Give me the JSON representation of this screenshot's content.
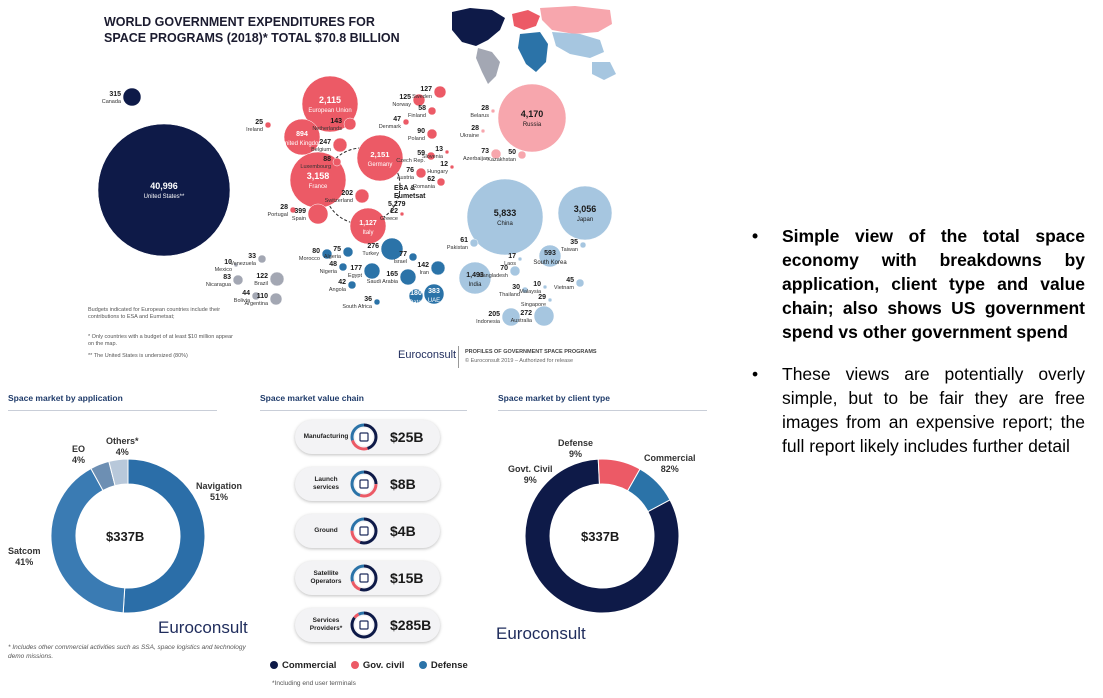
{
  "colors": {
    "us_navy": "#0e1a48",
    "europe_red": "#ec5a66",
    "europe_light": "#f7a6ad",
    "asia_blue": "#a6c6e0",
    "mideast_blue": "#2b73a8",
    "latam_grey": "#a3a7b3",
    "commercial": "#0e1a48",
    "gov_civil": "#ec5a66",
    "defense": "#2b73a8",
    "eo": "#6d8fb3",
    "others": "#b8c8da"
  },
  "bubble_map": {
    "title_line1": "WORLD GOVERNMENT EXPENDITURES FOR",
    "title_line2": "SPACE PROGRAMS (2018)* TOTAL $70.8 BILLION",
    "footnote1": "Budgets indicated for European countries include their contributions to ESA and Eumetsat;",
    "footnote2": "* Only countries with a budget of at least  $10 million appear on the map.",
    "footnote3": "** The United States is undersized (80%)",
    "brand": "Euroconsult",
    "brand_tag1": "PROFILES OF GOVERNMENT SPACE PROGRAMS",
    "brand_tag2": "© Euroconsult 2019 – Authorized for release",
    "esa_label": "ESA &\nEumetsat",
    "esa_value": "5,279"
  },
  "chart_data": [
    {
      "type": "scatter",
      "title": "WORLD GOVERNMENT EXPENDITURES FOR SPACE PROGRAMS (2018)* TOTAL $70.8 BILLION",
      "unit": "$M",
      "points": [
        {
          "name": "United States**",
          "value": "40,996",
          "group": "us"
        },
        {
          "name": "Canada",
          "value": "315",
          "group": "us"
        },
        {
          "name": "European Union",
          "value": "2,115",
          "group": "europe"
        },
        {
          "name": "United Kingdom",
          "value": "894",
          "group": "europe"
        },
        {
          "name": "Ireland",
          "value": "25",
          "group": "europe"
        },
        {
          "name": "Belgium",
          "value": "247",
          "group": "europe"
        },
        {
          "name": "Netherlands",
          "value": "143",
          "group": "europe"
        },
        {
          "name": "Germany",
          "value": "2,151",
          "group": "europe"
        },
        {
          "name": "France",
          "value": "3,158",
          "group": "europe"
        },
        {
          "name": "Luxembourg",
          "value": "88",
          "group": "europe"
        },
        {
          "name": "Switzerland",
          "value": "202",
          "group": "europe"
        },
        {
          "name": "Portugal",
          "value": "28",
          "group": "europe"
        },
        {
          "name": "Spain",
          "value": "399",
          "group": "europe"
        },
        {
          "name": "Italy",
          "value": "1,127",
          "group": "europe"
        },
        {
          "name": "Greece",
          "value": "22",
          "group": "europe"
        },
        {
          "name": "Norway",
          "value": "125",
          "group": "europe"
        },
        {
          "name": "Sweden",
          "value": "127",
          "group": "europe"
        },
        {
          "name": "Finland",
          "value": "58",
          "group": "europe"
        },
        {
          "name": "Denmark",
          "value": "47",
          "group": "europe"
        },
        {
          "name": "Poland",
          "value": "90",
          "group": "europe"
        },
        {
          "name": "Czech Rep.",
          "value": "59",
          "group": "europe"
        },
        {
          "name": "Slovenia",
          "value": "13",
          "group": "europe"
        },
        {
          "name": "Hungary",
          "value": "12",
          "group": "europe"
        },
        {
          "name": "Austria",
          "value": "76",
          "group": "europe"
        },
        {
          "name": "Romania",
          "value": "62",
          "group": "europe"
        },
        {
          "name": "Belarus",
          "value": "28",
          "group": "cis"
        },
        {
          "name": "Russia",
          "value": "4,170",
          "group": "cis"
        },
        {
          "name": "Ukraine",
          "value": "28",
          "group": "cis"
        },
        {
          "name": "Azerbaijan",
          "value": "73",
          "group": "cis"
        },
        {
          "name": "Kazakhstan",
          "value": "50",
          "group": "cis"
        },
        {
          "name": "China",
          "value": "5,833",
          "group": "asia"
        },
        {
          "name": "Japan",
          "value": "3,056",
          "group": "asia"
        },
        {
          "name": "Pakistan",
          "value": "61",
          "group": "asia"
        },
        {
          "name": "South Korea",
          "value": "593",
          "group": "asia"
        },
        {
          "name": "Taiwan",
          "value": "35",
          "group": "asia"
        },
        {
          "name": "India",
          "value": "1,493",
          "group": "asia"
        },
        {
          "name": "Laos",
          "value": "17",
          "group": "asia"
        },
        {
          "name": "Bangladesh",
          "value": "70",
          "group": "asia"
        },
        {
          "name": "Thailand",
          "value": "30",
          "group": "asia"
        },
        {
          "name": "Malaysia",
          "value": "10",
          "group": "asia"
        },
        {
          "name": "Vietnam",
          "value": "45",
          "group": "asia"
        },
        {
          "name": "Singapore",
          "value": "29",
          "group": "asia"
        },
        {
          "name": "Indonesia",
          "value": "205",
          "group": "asia"
        },
        {
          "name": "Australia",
          "value": "272",
          "group": "asia"
        },
        {
          "name": "Morocco",
          "value": "80",
          "group": "mideast"
        },
        {
          "name": "Algeria",
          "value": "75",
          "group": "mideast"
        },
        {
          "name": "Turkey",
          "value": "276",
          "group": "mideast"
        },
        {
          "name": "Israel",
          "value": "77",
          "group": "mideast"
        },
        {
          "name": "Nigeria",
          "value": "48",
          "group": "mideast"
        },
        {
          "name": "Egypt",
          "value": "177",
          "group": "mideast"
        },
        {
          "name": "Iran",
          "value": "142",
          "group": "mideast"
        },
        {
          "name": "Saudi Arabia",
          "value": "165",
          "group": "mideast"
        },
        {
          "name": "Angola",
          "value": "42",
          "group": "mideast"
        },
        {
          "name": "Qatar",
          "value": "180",
          "group": "mideast"
        },
        {
          "name": "UAE",
          "value": "383",
          "group": "mideast"
        },
        {
          "name": "South Africa",
          "value": "36",
          "group": "mideast"
        },
        {
          "name": "Mexico",
          "value": "10",
          "group": "latam"
        },
        {
          "name": "Venezuela",
          "value": "33",
          "group": "latam"
        },
        {
          "name": "Nicaragua",
          "value": "83",
          "group": "latam"
        },
        {
          "name": "Brazil",
          "value": "122",
          "group": "latam"
        },
        {
          "name": "Bolivia",
          "value": "44",
          "group": "latam"
        },
        {
          "name": "Argentina",
          "value": "110",
          "group": "latam"
        }
      ]
    },
    {
      "type": "pie",
      "title": "Space market by application",
      "center_label": "$337B",
      "slices": [
        {
          "name": "Navigation",
          "percent": "51%",
          "value": 51
        },
        {
          "name": "Satcom",
          "percent": "41%",
          "value": 41
        },
        {
          "name": "EO",
          "percent": "4%",
          "value": 4
        },
        {
          "name": "Others*",
          "percent": "4%",
          "value": 4
        }
      ]
    },
    {
      "type": "table",
      "title": "Space market value chain",
      "rows": [
        {
          "segment": "Manufacturing",
          "value": "$25B",
          "commercial": 0.45,
          "gov_civil": 0.25,
          "defense": 0.3
        },
        {
          "segment": "Launch services",
          "value": "$8B",
          "commercial": 0.25,
          "gov_civil": 0.3,
          "defense": 0.45
        },
        {
          "segment": "Ground",
          "value": "$4B",
          "commercial": 0.55,
          "gov_civil": 0.2,
          "defense": 0.25
        },
        {
          "segment": "Satellite Operators",
          "value": "$15B",
          "commercial": 0.55,
          "gov_civil": 0.15,
          "defense": 0.3
        },
        {
          "segment": "Services Providers*",
          "value": "$285B",
          "commercial": 0.85,
          "gov_civil": 0.07,
          "defense": 0.08
        }
      ],
      "legend": [
        "Commercial",
        "Gov. civil",
        "Defense"
      ]
    },
    {
      "type": "pie",
      "title": "Space market by client type",
      "center_label": "$337B",
      "slices": [
        {
          "name": "Commercial",
          "percent": "82%",
          "value": 82
        },
        {
          "name": "Govt. Civil",
          "percent": "9%",
          "value": 9
        },
        {
          "name": "Defense",
          "percent": "9%",
          "value": 9
        }
      ]
    }
  ],
  "bottom": {
    "application_title": "Space market by application",
    "application_footnote": "* Includes other commercial activities such as SSA, space logistics and technology demo missions.",
    "value_chain_title": "Space market value chain",
    "value_chain_footnote": "*Including end user terminals",
    "client_title": "Space market by client type",
    "brand": "Euroconsult"
  },
  "bullets": [
    {
      "text": "Simple view of the total space economy with breakdowns by application, client type and value chain; also shows US government spend vs other government spend",
      "bold": true
    },
    {
      "text": "These views are potentially overly simple, but to be fair they are free images from an expensive report; the full report likely includes further detail",
      "bold": false
    }
  ],
  "bullet_symbol": "•"
}
